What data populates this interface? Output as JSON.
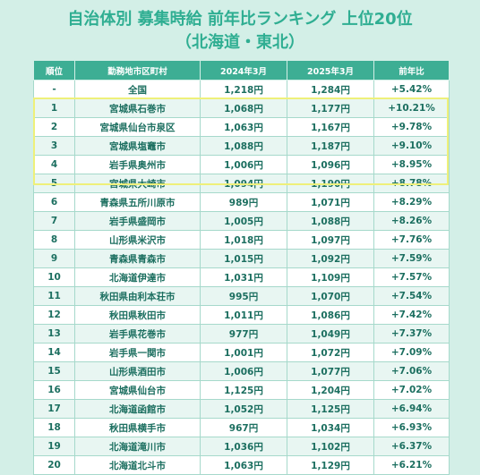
{
  "title": "自治体別 募集時給 前年比ランキング 上位20位",
  "subtitle": "（北海道・東北）",
  "table": {
    "headers": [
      "順位",
      "勤務地市区町村",
      "2024年3月",
      "2025年3月",
      "前年比"
    ],
    "rows": [
      [
        "-",
        "全国",
        "1,218円",
        "1,284円",
        "+5.42%"
      ],
      [
        "1",
        "宮城県石巻市",
        "1,068円",
        "1,177円",
        "+10.21%"
      ],
      [
        "2",
        "宮城県仙台市泉区",
        "1,063円",
        "1,167円",
        "+9.78%"
      ],
      [
        "3",
        "宮城県塩竈市",
        "1,088円",
        "1,187円",
        "+9.10%"
      ],
      [
        "4",
        "岩手県奥州市",
        "1,006円",
        "1,096円",
        "+8.95%"
      ],
      [
        "5",
        "宮城県大崎市",
        "1,094円",
        "1,190円",
        "+8.78%"
      ],
      [
        "6",
        "青森県五所川原市",
        "989円",
        "1,071円",
        "+8.29%"
      ],
      [
        "7",
        "岩手県盛岡市",
        "1,005円",
        "1,088円",
        "+8.26%"
      ],
      [
        "8",
        "山形県米沢市",
        "1,018円",
        "1,097円",
        "+7.76%"
      ],
      [
        "9",
        "青森県青森市",
        "1,015円",
        "1,092円",
        "+7.59%"
      ],
      [
        "10",
        "北海道伊達市",
        "1,031円",
        "1,109円",
        "+7.57%"
      ],
      [
        "11",
        "秋田県由利本荘市",
        "995円",
        "1,070円",
        "+7.54%"
      ],
      [
        "12",
        "秋田県秋田市",
        "1,011円",
        "1,086円",
        "+7.42%"
      ],
      [
        "13",
        "岩手県花巻市",
        "977円",
        "1,049円",
        "+7.37%"
      ],
      [
        "14",
        "岩手県一関市",
        "1,001円",
        "1,072円",
        "+7.09%"
      ],
      [
        "15",
        "山形県酒田市",
        "1,006円",
        "1,077円",
        "+7.06%"
      ],
      [
        "16",
        "宮城県仙台市",
        "1,125円",
        "1,204円",
        "+7.02%"
      ],
      [
        "17",
        "北海道函館市",
        "1,052円",
        "1,125円",
        "+6.94%"
      ],
      [
        "18",
        "秋田県横手市",
        "967円",
        "1,034円",
        "+6.93%"
      ],
      [
        "19",
        "北海道滝川市",
        "1,036円",
        "1,102円",
        "+6.37%"
      ],
      [
        "20",
        "北海道北斗市",
        "1,063円",
        "1,129円",
        "+6.21%"
      ]
    ]
  },
  "colors": {
    "background": "#d3efe7",
    "accent": "#2fae92",
    "header_bg": "#3dae94",
    "text": "#1c6f60",
    "highlight": "#eef07a"
  }
}
